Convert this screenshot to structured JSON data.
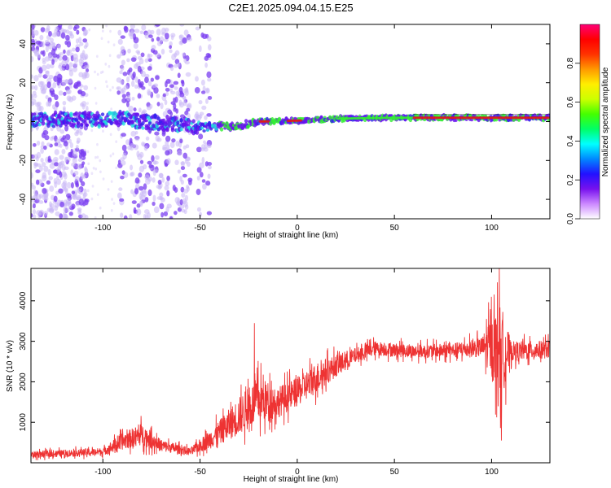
{
  "title": "C2E1.2025.094.04.15.E25",
  "colors": {
    "snr_line": "#ee3333",
    "band_red": "#e01a1a",
    "band_cyan": "#22dddd",
    "band_green": "#33ee33",
    "band_blue": "#3322ee",
    "band_purple": "#6611ee",
    "scatter_light": "#c9b6f5",
    "scatter_dark": "#7a3ef0"
  },
  "chart_data": [
    {
      "type": "heatmap",
      "xlabel": "Height of straight line (km)",
      "ylabel": "Frequency (Hz)",
      "xlim": [
        -137,
        130
      ],
      "ylim": [
        -50,
        50
      ],
      "x_ticks": [
        -100,
        -50,
        0,
        50,
        100
      ],
      "y_ticks": [
        -40,
        -20,
        0,
        20,
        40
      ],
      "grid": false,
      "signal_band_center_hz": [
        {
          "x": -130,
          "y": 1.0
        },
        {
          "x": -100,
          "y": 1.0
        },
        {
          "x": -90,
          "y": 1.5
        },
        {
          "x": -80,
          "y": 0.0
        },
        {
          "x": -60,
          "y": -1.5
        },
        {
          "x": -50,
          "y": -3.0
        },
        {
          "x": -30,
          "y": -2.0
        },
        {
          "x": -20,
          "y": 0.0
        },
        {
          "x": 0,
          "y": 0.5
        },
        {
          "x": 20,
          "y": 1.5
        },
        {
          "x": 50,
          "y": 2.0
        },
        {
          "x": 100,
          "y": 2.0
        },
        {
          "x": 130,
          "y": 2.0
        }
      ],
      "colorbar": {
        "label": "Normalized spectral amplitude",
        "range": [
          0,
          1
        ],
        "ticks": [
          0.0,
          0.2,
          0.4,
          0.6,
          0.8
        ],
        "tick_labels": [
          "0.0",
          "0.2",
          "0.4",
          "0.6",
          "0.8"
        ],
        "colormap": [
          "#ffffff",
          "#cc88ff",
          "#7711ee",
          "#2211ff",
          "#0088ff",
          "#00ffff",
          "#00ff66",
          "#44ff00",
          "#ccff00",
          "#ffee00",
          "#ff9900",
          "#ff3300",
          "#ff0000",
          "#ff0077"
        ]
      }
    },
    {
      "type": "line",
      "xlabel": "Height of straight line (km)",
      "ylabel": "SNR (10 * v/v)",
      "xlim": [
        -137,
        130
      ],
      "ylim": [
        0,
        4800
      ],
      "x_ticks": [
        -100,
        -50,
        0,
        50,
        100
      ],
      "y_ticks": [
        1000,
        2000,
        3000,
        4000
      ],
      "grid": false,
      "series": [
        {
          "envelope": [
            {
              "x": -137,
              "low": 50,
              "high": 350
            },
            {
              "x": -100,
              "low": 100,
              "high": 450
            },
            {
              "x": -90,
              "low": 150,
              "high": 900
            },
            {
              "x": -80,
              "low": 200,
              "high": 1200
            },
            {
              "x": -70,
              "low": 150,
              "high": 700
            },
            {
              "x": -55,
              "low": 100,
              "high": 450
            },
            {
              "x": -45,
              "low": 150,
              "high": 1000
            },
            {
              "x": -40,
              "low": 200,
              "high": 1300
            },
            {
              "x": -30,
              "low": 300,
              "high": 2000
            },
            {
              "x": -20,
              "low": 500,
              "high": 2600
            },
            {
              "x": -10,
              "low": 800,
              "high": 2200
            },
            {
              "x": 0,
              "low": 1100,
              "high": 2400
            },
            {
              "x": 10,
              "low": 1400,
              "high": 2800
            },
            {
              "x": 20,
              "low": 1900,
              "high": 2900
            },
            {
              "x": 30,
              "low": 2300,
              "high": 3000
            },
            {
              "x": 40,
              "low": 2500,
              "high": 3150
            },
            {
              "x": 60,
              "low": 2450,
              "high": 3050
            },
            {
              "x": 80,
              "low": 2450,
              "high": 3100
            },
            {
              "x": 95,
              "low": 2400,
              "high": 3300
            },
            {
              "x": 100,
              "low": 1500,
              "high": 4300
            },
            {
              "x": 105,
              "low": 600,
              "high": 4850
            },
            {
              "x": 110,
              "low": 2300,
              "high": 3200
            },
            {
              "x": 130,
              "low": 2400,
              "high": 3200
            }
          ],
          "peaks": [
            {
              "x": -22,
              "y": 3450
            },
            {
              "x": 104,
              "y": 4850
            },
            {
              "x": 105,
              "y": 550
            }
          ]
        }
      ]
    }
  ]
}
